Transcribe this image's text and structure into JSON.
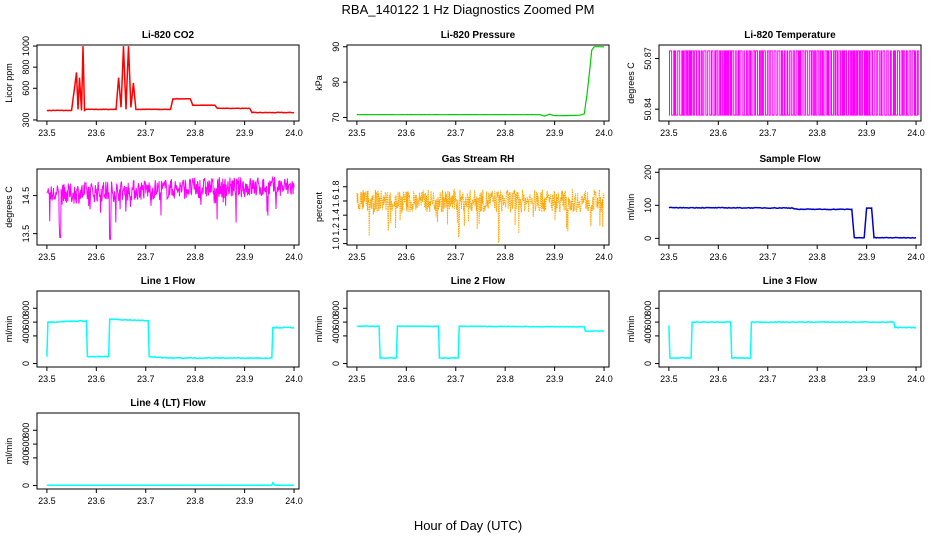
{
  "figure": {
    "title": "RBA_140122  1 Hz Diagnostics Zoomed PM",
    "xlabel": "Hour of Day (UTC)"
  },
  "chart_data": [
    {
      "id": "co2",
      "type": "line",
      "title": "Li-820 CO2",
      "ylabel": "Licor ppm",
      "color": "#ff0000",
      "xlim": [
        23.48,
        24.01
      ],
      "ylim": [
        290,
        1010
      ],
      "xticks": [
        "23.5",
        "23.6",
        "23.7",
        "23.8",
        "23.9",
        "24.0"
      ],
      "yticks": [
        "300",
        "600",
        "800",
        "1000"
      ],
      "x": [
        23.5,
        23.55,
        23.56,
        23.563,
        23.566,
        23.57,
        23.573,
        23.576,
        23.58,
        23.64,
        23.645,
        23.65,
        23.655,
        23.66,
        23.665,
        23.67,
        23.675,
        23.68,
        23.75,
        23.755,
        23.79,
        23.795,
        23.84,
        23.845,
        23.91,
        23.915,
        24.0
      ],
      "y": [
        390,
        390,
        750,
        400,
        700,
        390,
        1000,
        390,
        400,
        400,
        700,
        420,
        1000,
        400,
        1000,
        420,
        650,
        400,
        400,
        500,
        500,
        440,
        440,
        410,
        410,
        370,
        370
      ],
      "grid": false
    },
    {
      "id": "pressure",
      "type": "line",
      "title": "Li-820 Pressure",
      "ylabel": "kPa",
      "color": "#00cc00",
      "xlim": [
        23.48,
        24.01
      ],
      "ylim": [
        69,
        90.5
      ],
      "xticks": [
        "23.5",
        "23.6",
        "23.7",
        "23.8",
        "23.9",
        "24.0"
      ],
      "yticks": [
        "70",
        "80",
        "90"
      ],
      "x": [
        23.5,
        23.87,
        23.88,
        23.89,
        23.9,
        23.95,
        23.96,
        23.965,
        23.97,
        23.975,
        23.98,
        24.0
      ],
      "y": [
        70.8,
        70.8,
        70.4,
        70.9,
        70.5,
        70.6,
        71,
        76,
        82,
        89,
        90,
        90
      ],
      "grid": false
    },
    {
      "id": "licor_temp",
      "type": "line",
      "title": "Li-820 Temperature",
      "ylabel": "degrees C",
      "color": "#ff00ff",
      "xlim": [
        23.48,
        24.01
      ],
      "ylim": [
        50.833,
        50.878
      ],
      "xticks": [
        "23.5",
        "23.6",
        "23.7",
        "23.8",
        "23.9",
        "24.0"
      ],
      "yticks": [
        "50.84",
        "50.87"
      ],
      "x": [
        23.5,
        24.0
      ],
      "y": [
        50.8365,
        50.8745
      ],
      "note_style": "alternating",
      "grid": false
    },
    {
      "id": "ambient",
      "type": "line",
      "title": "Ambient Box Temperature",
      "ylabel": "degrees C",
      "color": "#ff00ff",
      "xlim": [
        23.48,
        24.01
      ],
      "ylim": [
        13.2,
        15.2
      ],
      "xticks": [
        "23.5",
        "23.6",
        "23.7",
        "23.8",
        "23.9",
        "24.0"
      ],
      "yticks": [
        "13.5",
        "14.5"
      ],
      "x": [
        23.5,
        23.6,
        23.7,
        23.8,
        23.9,
        24.0
      ],
      "y": [
        14.5,
        14.6,
        14.65,
        14.7,
        14.72,
        14.72
      ],
      "grid": false
    },
    {
      "id": "rh",
      "type": "line",
      "title": "Gas Stream RH",
      "ylabel": "percent",
      "color": "#ffa500",
      "xlim": [
        23.48,
        24.01
      ],
      "ylim": [
        0.98,
        2.05
      ],
      "xticks": [
        "23.5",
        "23.6",
        "23.7",
        "23.8",
        "23.9",
        "24.0"
      ],
      "yticks": [
        "1.0",
        "1.2",
        "1.4",
        "1.6",
        "1.8"
      ],
      "x": [
        23.5,
        24.0
      ],
      "y": [
        1.6,
        1.6
      ],
      "grid": false
    },
    {
      "id": "sample_flow",
      "type": "line",
      "title": "Sample Flow",
      "ylabel": "ml/min",
      "color": "#0000cc",
      "xlim": [
        23.48,
        24.01
      ],
      "ylim": [
        -20,
        210
      ],
      "xticks": [
        "23.5",
        "23.6",
        "23.7",
        "23.8",
        "23.9",
        "24.0"
      ],
      "yticks": [
        "0",
        "100",
        "200"
      ],
      "x": [
        23.5,
        23.75,
        23.76,
        23.87,
        23.875,
        23.895,
        23.9,
        23.91,
        23.915,
        24.0
      ],
      "y": [
        93,
        92,
        88,
        88,
        2,
        2,
        92,
        92,
        2,
        2
      ],
      "grid": false
    },
    {
      "id": "line1",
      "type": "line",
      "title": "Line 1 Flow",
      "ylabel": "ml/min",
      "color": "#00ffff",
      "xlim": [
        23.48,
        24.01
      ],
      "ylim": [
        -50,
        1050
      ],
      "xticks": [
        "23.5",
        "23.6",
        "23.7",
        "23.8",
        "23.9",
        "24.0"
      ],
      "yticks": [
        "0",
        "400",
        "600",
        "800"
      ],
      "x": [
        23.5,
        23.502,
        23.58,
        23.582,
        23.625,
        23.627,
        23.705,
        23.707,
        23.75,
        23.955,
        23.957,
        24.0
      ],
      "y": [
        100,
        600,
        620,
        100,
        100,
        640,
        620,
        100,
        80,
        80,
        520,
        520
      ],
      "grid": false
    },
    {
      "id": "line2",
      "type": "line",
      "title": "Line 2 Flow",
      "ylabel": "ml/min",
      "color": "#00ffff",
      "xlim": [
        23.48,
        24.01
      ],
      "ylim": [
        -50,
        1050
      ],
      "xticks": [
        "23.5",
        "23.6",
        "23.7",
        "23.8",
        "23.9",
        "24.0"
      ],
      "yticks": [
        "0",
        "400",
        "600",
        "800"
      ],
      "x": [
        23.5,
        23.545,
        23.547,
        23.58,
        23.582,
        23.665,
        23.667,
        23.705,
        23.707,
        23.96,
        23.962,
        24.0
      ],
      "y": [
        540,
        540,
        80,
        80,
        540,
        540,
        80,
        80,
        540,
        530,
        470,
        470
      ],
      "grid": false
    },
    {
      "id": "line3",
      "type": "line",
      "title": "Line 3 Flow",
      "ylabel": "ml/min",
      "color": "#00ffff",
      "xlim": [
        23.48,
        24.01
      ],
      "ylim": [
        -50,
        1050
      ],
      "xticks": [
        "23.5",
        "23.6",
        "23.7",
        "23.8",
        "23.9",
        "24.0"
      ],
      "yticks": [
        "0",
        "400",
        "600",
        "800"
      ],
      "x": [
        23.5,
        23.502,
        23.545,
        23.547,
        23.625,
        23.627,
        23.665,
        23.667,
        23.955,
        23.957,
        24.0
      ],
      "y": [
        550,
        80,
        80,
        600,
        600,
        80,
        80,
        600,
        600,
        520,
        520
      ],
      "grid": false
    },
    {
      "id": "line4",
      "type": "line",
      "title": "Line 4 (LT) Flow",
      "ylabel": "ml/min",
      "color": "#00ffff",
      "xlim": [
        23.48,
        24.01
      ],
      "ylim": [
        -50,
        1050
      ],
      "xticks": [
        "23.5",
        "23.6",
        "23.7",
        "23.8",
        "23.9",
        "24.0"
      ],
      "yticks": [
        "0",
        "400",
        "600",
        "800"
      ],
      "x": [
        23.5,
        23.955,
        23.957,
        23.96,
        23.962,
        24.0
      ],
      "y": [
        5,
        5,
        40,
        10,
        5,
        5
      ],
      "grid": false
    }
  ]
}
